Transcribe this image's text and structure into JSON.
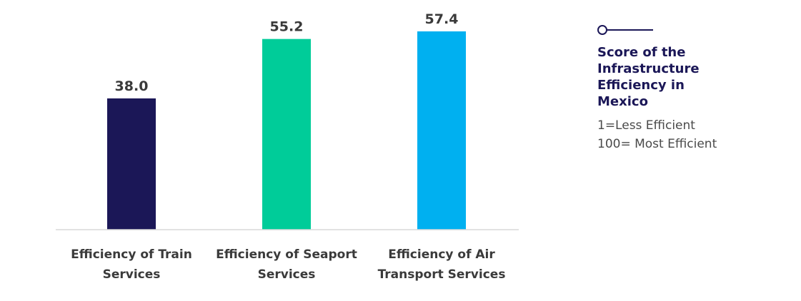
{
  "colors": {
    "navy": "#1b1757",
    "green": "#00cc99",
    "blue": "#00b0f0",
    "axis": "#d9d9d9"
  },
  "chart_data": {
    "type": "bar",
    "categories": [
      "Efficiency of Train Services",
      "Efficiency of Seaport Services",
      "Efficiency of Air Transport Services"
    ],
    "category_lines": [
      [
        "Efficiency of Train",
        "Services"
      ],
      [
        "Efficiency of Seaport",
        "Services"
      ],
      [
        "Efficiency of Air",
        "Transport Services"
      ]
    ],
    "values": [
      38.0,
      55.2,
      57.4
    ],
    "value_labels": [
      "38.0",
      "55.2",
      "57.4"
    ],
    "bar_colors": [
      "#1b1757",
      "#00cc99",
      "#00b0f0"
    ],
    "title": "",
    "xlabel": "",
    "ylabel": "",
    "ylim": [
      0,
      60
    ],
    "grid": false,
    "legend": "none"
  },
  "side_panel": {
    "icon": "line-circle-marker-icon",
    "title": "Score of the Infrastructure Efficiency in Mexico",
    "note_lines": [
      "1=Less Efficient",
      "100= Most Efficient"
    ]
  }
}
